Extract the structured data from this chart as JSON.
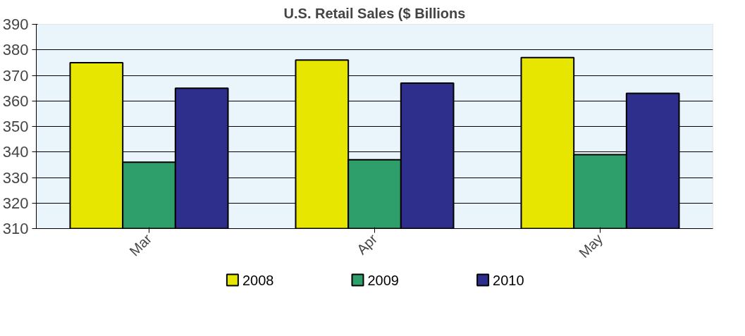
{
  "chart_data": {
    "type": "bar",
    "title": "U.S. Retail Sales ($ Billions",
    "categories": [
      "Mar",
      "Apr",
      "May"
    ],
    "series": [
      {
        "name": "2008",
        "color": "#e6e600",
        "values": [
          375,
          376,
          377
        ]
      },
      {
        "name": "2009",
        "color": "#2e9e6a",
        "values": [
          336,
          337,
          339
        ]
      },
      {
        "name": "2010",
        "color": "#2e2e8c",
        "values": [
          365,
          367,
          363
        ]
      }
    ],
    "ylim": [
      310,
      390
    ],
    "yticks": [
      310,
      320,
      330,
      340,
      350,
      360,
      370,
      380,
      390
    ],
    "grid": "y",
    "legend": "bottom"
  }
}
